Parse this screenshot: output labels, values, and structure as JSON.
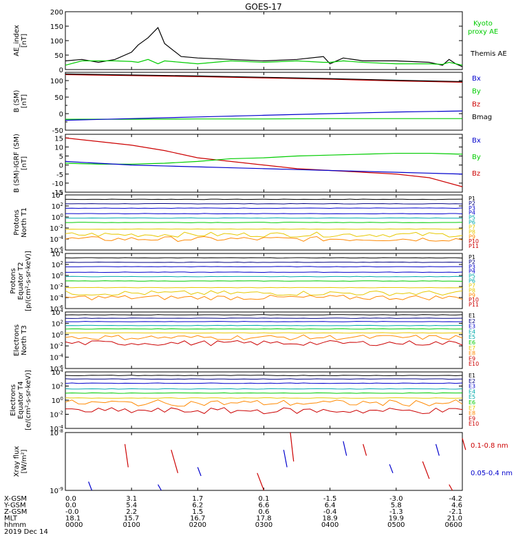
{
  "title": "GOES-17",
  "x_tick_labels": [
    "0000",
    "0100",
    "0200",
    "0300",
    "0400",
    "0500",
    "0600"
  ],
  "date_label": "2019 Dec 14",
  "ephemeris": {
    "rows": [
      {
        "label": "X-GSM",
        "values": [
          "0.0",
          "3.1",
          "1.7",
          "0.1",
          "-1.5",
          "-3.0",
          "-4.2"
        ]
      },
      {
        "label": "Y-GSM",
        "values": [
          "0.0",
          "5.4",
          "6.2",
          "6.6",
          "6.4",
          "5.8",
          "4.6"
        ]
      },
      {
        "label": "Z-GSM",
        "values": [
          "-0.0",
          "2.2",
          "1.5",
          "0.6",
          "-0.4",
          "-1.3",
          "-2.1"
        ]
      },
      {
        "label": "MLT",
        "values": [
          "18.1",
          "15.7",
          "16.7",
          "17.8",
          "18.9",
          "19.9",
          "21.0"
        ]
      },
      {
        "label": "hhmm",
        "values": [
          "0000",
          "0100",
          "0200",
          "0300",
          "0400",
          "0500",
          "0600"
        ]
      }
    ]
  },
  "colors": {
    "black": "#000000",
    "green": "#00cc00",
    "blue": "#0000cc",
    "red": "#cc0000",
    "navy": "#000080",
    "teal": "#00aaaa",
    "yellow": "#e6c800",
    "orange": "#ff8800"
  },
  "chart_data": [
    {
      "type": "line",
      "id": "ae",
      "ylabel": "AE_index\n[nT]",
      "ylim": [
        0,
        200
      ],
      "yticks": [
        0,
        50,
        100,
        150,
        200
      ],
      "ytick_labels": [
        "0",
        "50",
        "100",
        "150",
        "200"
      ],
      "x": [
        0,
        0.25,
        0.5,
        0.75,
        1.0,
        1.1,
        1.25,
        1.4,
        1.5,
        1.75,
        2.0,
        2.5,
        3.0,
        3.5,
        3.9,
        4.0,
        4.2,
        4.5,
        5.0,
        5.5,
        5.7,
        5.8,
        5.9,
        6.0
      ],
      "series": [
        {
          "name": "Themis AE",
          "color": "black",
          "values": [
            30,
            35,
            25,
            35,
            60,
            85,
            110,
            145,
            90,
            45,
            40,
            35,
            30,
            35,
            45,
            20,
            40,
            30,
            30,
            25,
            15,
            35,
            20,
            10
          ]
        },
        {
          "name": "Kyoto proxy AE",
          "color": "green",
          "values": [
            15,
            30,
            30,
            30,
            28,
            25,
            35,
            20,
            30,
            25,
            20,
            30,
            25,
            30,
            25,
            25,
            30,
            25,
            20,
            20,
            18,
            25,
            20,
            15
          ]
        }
      ],
      "legend": [
        "Kyoto",
        "proxy AE",
        "Themis AE"
      ]
    },
    {
      "type": "line",
      "id": "bsm",
      "ylabel": "B (SM)\n[nT]",
      "ylim": [
        -50,
        125
      ],
      "yticks": [
        -50,
        0,
        50,
        100
      ],
      "ytick_labels": [
        "-50",
        "0",
        "50",
        "100"
      ],
      "minor": [
        -25,
        25,
        75
      ],
      "x": [
        0,
        1,
        2,
        3,
        4,
        5,
        6
      ],
      "series": [
        {
          "name": "Bz",
          "color": "red",
          "values": [
            118,
            115,
            112,
            108,
            104,
            99,
            95
          ]
        },
        {
          "name": "Bmag",
          "color": "black",
          "values": [
            120,
            117,
            114,
            110,
            106,
            101,
            97
          ]
        },
        {
          "name": "By",
          "color": "green",
          "values": [
            -17,
            -17,
            -16,
            -16,
            -15,
            -15,
            -15
          ]
        },
        {
          "name": "Bx",
          "color": "blue",
          "values": [
            -20,
            -15,
            -10,
            -5,
            0,
            5,
            8
          ]
        }
      ],
      "legend": [
        "Bx",
        "By",
        "Bz",
        "Bmag"
      ]
    },
    {
      "type": "line",
      "id": "bigrf",
      "ylabel": "B (SM)-IGRF (SM)\n[nT]",
      "ylim": [
        -15,
        17
      ],
      "yticks": [
        -15,
        -10,
        -5,
        0,
        5,
        10,
        15
      ],
      "ytick_labels": [
        "-15",
        "-10",
        "-5",
        "0",
        "5",
        "10",
        "15"
      ],
      "x": [
        0,
        0.5,
        1,
        1.5,
        2,
        2.5,
        3,
        3.5,
        4,
        4.5,
        5,
        5.5,
        6
      ],
      "series": [
        {
          "name": "Bz",
          "color": "red",
          "values": [
            15,
            13,
            11,
            8,
            4,
            2,
            0,
            -2,
            -3,
            -4,
            -5,
            -7,
            -12
          ]
        },
        {
          "name": "By",
          "color": "green",
          "values": [
            1,
            0.5,
            0.5,
            1,
            2,
            3.5,
            4,
            5,
            5.5,
            6,
            6.5,
            6.5,
            6
          ]
        },
        {
          "name": "Bx",
          "color": "blue",
          "values": [
            2,
            1,
            0,
            -0.5,
            -1,
            -1.5,
            -2,
            -2.5,
            -3,
            -3.5,
            -4,
            -4.5,
            -5
          ]
        }
      ],
      "legend": [
        "Bx",
        "By",
        "Bz"
      ]
    },
    {
      "type": "line",
      "id": "prot_n",
      "log": true,
      "ylabel": "Protons\nNorth T1",
      "ylim": [
        -6,
        4
      ],
      "ytick_labels": [
        "10^-6",
        "10^-4",
        "10^-2",
        "10^0",
        "10^2",
        "10^4"
      ],
      "yticks": [
        -6,
        -4,
        -2,
        0,
        2,
        4
      ],
      "legend": [
        "P1",
        "P2",
        "P3",
        "P4",
        "P5",
        "P6",
        "P7",
        "P8",
        "P9",
        "P10",
        "P11"
      ],
      "legend_colors": [
        "black",
        "navy",
        "blue",
        "blue",
        "teal",
        "teal",
        "yellow",
        "yellow",
        "orange",
        "red",
        "red"
      ],
      "levels": [
        3.2,
        2.4,
        1.6,
        0.6,
        -0.2,
        -1.0,
        -2.2,
        -3.2,
        -4.0
      ],
      "level_colors": [
        "black",
        "navy",
        "blue",
        "blue",
        "teal",
        "green",
        "yellow",
        "yellow",
        "orange"
      ]
    },
    {
      "type": "line",
      "id": "prot_e",
      "log": true,
      "ylabel": "Protons\nEquator T2\n[p/(cm²-s-sr-keV)]",
      "ylim": [
        -6,
        4
      ],
      "ytick_labels": [
        "10^-6",
        "10^-4",
        "10^-2",
        "10^0",
        "10^2",
        "10^4"
      ],
      "yticks": [
        -6,
        -4,
        -2,
        0,
        2,
        4
      ],
      "legend": [
        "P1",
        "P2",
        "P3",
        "P4",
        "P5",
        "P6",
        "P7",
        "P8",
        "P9",
        "P10",
        "P11"
      ],
      "legend_colors": [
        "black",
        "navy",
        "blue",
        "blue",
        "teal",
        "teal",
        "yellow",
        "yellow",
        "orange",
        "red",
        "red"
      ],
      "levels": [
        3.2,
        2.4,
        1.6,
        0.6,
        -0.2,
        -1.0,
        -2.2,
        -3.2,
        -4.0
      ],
      "level_colors": [
        "black",
        "navy",
        "blue",
        "blue",
        "teal",
        "green",
        "yellow",
        "yellow",
        "orange"
      ]
    },
    {
      "type": "line",
      "id": "elec_n",
      "log": true,
      "ylabel": "Electrons\nNorth T3",
      "ylim": [
        -6,
        4
      ],
      "ytick_labels": [
        "10^-6",
        "10^-4",
        "10^-2",
        "10^0",
        "10^2",
        "10^4"
      ],
      "yticks": [
        -6,
        -4,
        -2,
        0,
        2,
        4
      ],
      "legend": [
        "E1",
        "E2",
        "E3",
        "E4",
        "E5",
        "E6",
        "E7",
        "E8",
        "E9",
        "E10"
      ],
      "legend_colors": [
        "black",
        "navy",
        "blue",
        "teal",
        "teal",
        "green",
        "yellow",
        "orange",
        "red",
        "red"
      ],
      "levels": [
        3.5,
        2.9,
        2.3,
        1.6,
        1.0,
        0.3,
        -0.5,
        -1.5
      ],
      "level_colors": [
        "black",
        "navy",
        "blue",
        "teal",
        "green",
        "yellow",
        "orange",
        "red"
      ]
    },
    {
      "type": "line",
      "id": "elec_e",
      "log": true,
      "ylabel": "Electrons\nEquator T4\n[e/(cm²-s-sr-keV)]",
      "ylim": [
        -4,
        4
      ],
      "ytick_labels": [
        "10^-4",
        "10^-2",
        "10^0",
        "10^2",
        "10^4"
      ],
      "yticks": [
        -4,
        -2,
        0,
        2,
        4
      ],
      "legend": [
        "E1",
        "E2",
        "E3",
        "E4",
        "E5",
        "E6",
        "E7",
        "E8",
        "E9",
        "E10"
      ],
      "legend_colors": [
        "black",
        "navy",
        "blue",
        "teal",
        "teal",
        "green",
        "yellow",
        "orange",
        "red",
        "red"
      ],
      "levels": [
        3.5,
        3.0,
        2.4,
        1.6,
        1.0,
        0.3,
        -0.4,
        -1.5
      ],
      "level_colors": [
        "black",
        "navy",
        "blue",
        "teal",
        "green",
        "yellow",
        "orange",
        "red"
      ]
    },
    {
      "type": "line",
      "id": "xray",
      "log": true,
      "ylabel": "Xray flux\n[W/m²]",
      "ylim": [
        -9,
        -8
      ],
      "ytick_labels": [
        "10^-9",
        "10^-8"
      ],
      "yticks": [
        -9,
        -8
      ],
      "legend": [
        "0.1-0.8 nm",
        "0.05-0.4 nm"
      ],
      "legend_colors": [
        "red",
        "blue"
      ],
      "series": [
        {
          "name": "0.1-0.8 nm",
          "color": "red",
          "segments": [
            [
              0.9,
              -8.2,
              0.95,
              -8.6
            ],
            [
              1.6,
              -8.3,
              1.7,
              -8.7
            ],
            [
              2.9,
              -8.7,
              3.0,
              -9.0
            ],
            [
              3.4,
              -8.0,
              3.45,
              -8.5
            ],
            [
              4.5,
              -8.2,
              4.55,
              -8.4
            ],
            [
              5.4,
              -8.5,
              5.5,
              -8.8
            ],
            [
              5.8,
              -8.9,
              5.85,
              -9.0
            ],
            [
              6.0,
              -8.1,
              6.05,
              -8.3
            ]
          ]
        },
        {
          "name": "0.05-0.4 nm",
          "color": "blue",
          "segments": [
            [
              0.35,
              -8.85,
              0.4,
              -9.0
            ],
            [
              1.4,
              -8.9,
              1.45,
              -9.0
            ],
            [
              2.0,
              -8.6,
              2.05,
              -8.75
            ],
            [
              3.3,
              -8.3,
              3.35,
              -8.6
            ],
            [
              4.2,
              -8.15,
              4.25,
              -8.4
            ],
            [
              4.9,
              -8.55,
              4.95,
              -8.7
            ],
            [
              5.6,
              -8.2,
              5.65,
              -8.4
            ]
          ]
        }
      ]
    }
  ]
}
